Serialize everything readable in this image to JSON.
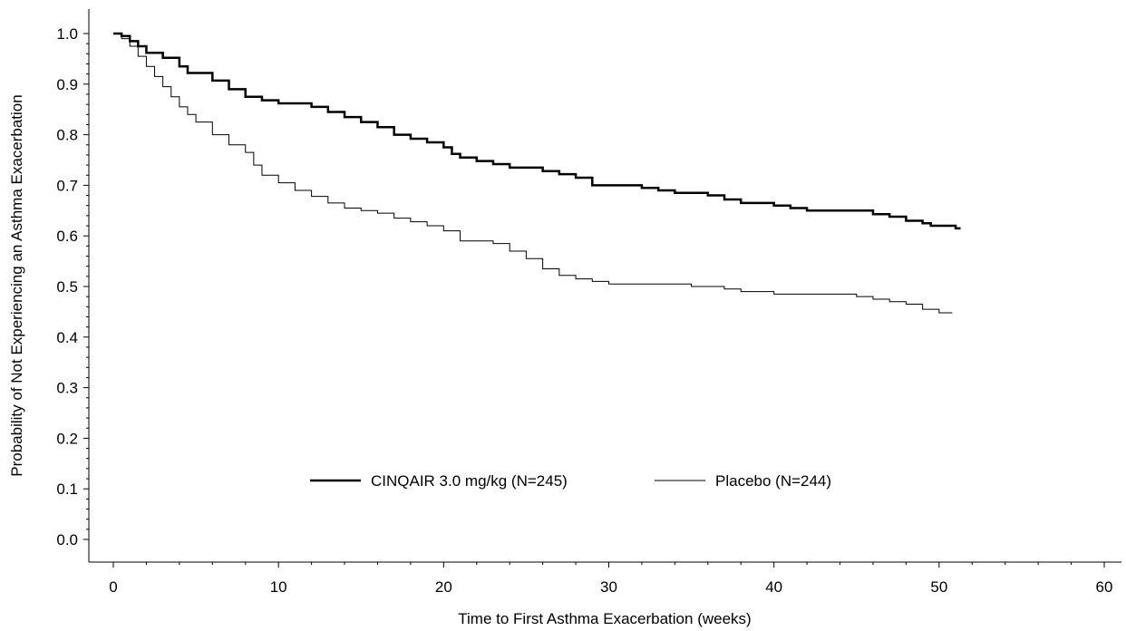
{
  "chart_data": {
    "type": "line",
    "step": true,
    "title": "",
    "xlabel": "Time to First Asthma Exacerbation (weeks)",
    "ylabel": "Probability of Not Experiencing an Asthma Exacerbation",
    "xlim": [
      0,
      60
    ],
    "ylim": [
      0.0,
      1.0
    ],
    "x_ticks": [
      "0",
      "10",
      "20",
      "30",
      "40",
      "50",
      "60"
    ],
    "y_ticks": [
      "0.0",
      "0.1",
      "0.2",
      "0.3",
      "0.4",
      "0.5",
      "0.6",
      "0.7",
      "0.8",
      "0.9",
      "1.0"
    ],
    "grid": false,
    "legend_position": "bottom-center",
    "series": [
      {
        "name": "CINQAIR 3.0 mg/kg (N=245)",
        "style": "thick",
        "color": "#000000",
        "points": [
          [
            0,
            1.0
          ],
          [
            0.5,
            0.995
          ],
          [
            1,
            0.985
          ],
          [
            1.5,
            0.975
          ],
          [
            2,
            0.962
          ],
          [
            3,
            0.952
          ],
          [
            4,
            0.935
          ],
          [
            4.5,
            0.922
          ],
          [
            6,
            0.907
          ],
          [
            7,
            0.89
          ],
          [
            8,
            0.875
          ],
          [
            9,
            0.868
          ],
          [
            10,
            0.862
          ],
          [
            12,
            0.855
          ],
          [
            13,
            0.845
          ],
          [
            14,
            0.835
          ],
          [
            15,
            0.825
          ],
          [
            16,
            0.815
          ],
          [
            17,
            0.8
          ],
          [
            18,
            0.792
          ],
          [
            19,
            0.785
          ],
          [
            20,
            0.775
          ],
          [
            20.5,
            0.762
          ],
          [
            21,
            0.755
          ],
          [
            22,
            0.748
          ],
          [
            23,
            0.742
          ],
          [
            24,
            0.735
          ],
          [
            26,
            0.728
          ],
          [
            27,
            0.722
          ],
          [
            28,
            0.715
          ],
          [
            29,
            0.7
          ],
          [
            32,
            0.695
          ],
          [
            33,
            0.69
          ],
          [
            34,
            0.685
          ],
          [
            36,
            0.68
          ],
          [
            37,
            0.672
          ],
          [
            38,
            0.665
          ],
          [
            40,
            0.66
          ],
          [
            41,
            0.655
          ],
          [
            42,
            0.65
          ],
          [
            46,
            0.643
          ],
          [
            47,
            0.638
          ],
          [
            48,
            0.63
          ],
          [
            49,
            0.625
          ],
          [
            49.5,
            0.62
          ],
          [
            51,
            0.615
          ],
          [
            51.3,
            0.615
          ]
        ]
      },
      {
        "name": "Placebo (N=244)",
        "style": "thin",
        "color": "#000000",
        "points": [
          [
            0,
            1.0
          ],
          [
            0.5,
            0.99
          ],
          [
            1,
            0.975
          ],
          [
            1.5,
            0.955
          ],
          [
            2,
            0.935
          ],
          [
            2.5,
            0.915
          ],
          [
            3,
            0.895
          ],
          [
            3.5,
            0.875
          ],
          [
            4,
            0.855
          ],
          [
            4.5,
            0.84
          ],
          [
            5,
            0.825
          ],
          [
            6,
            0.8
          ],
          [
            7,
            0.78
          ],
          [
            8,
            0.765
          ],
          [
            8.5,
            0.74
          ],
          [
            9,
            0.72
          ],
          [
            10,
            0.705
          ],
          [
            11,
            0.69
          ],
          [
            12,
            0.678
          ],
          [
            13,
            0.665
          ],
          [
            14,
            0.655
          ],
          [
            15,
            0.65
          ],
          [
            16,
            0.645
          ],
          [
            17,
            0.635
          ],
          [
            18,
            0.628
          ],
          [
            19,
            0.62
          ],
          [
            20,
            0.61
          ],
          [
            21,
            0.59
          ],
          [
            23,
            0.585
          ],
          [
            24,
            0.57
          ],
          [
            25,
            0.555
          ],
          [
            26,
            0.535
          ],
          [
            27,
            0.522
          ],
          [
            28,
            0.515
          ],
          [
            29,
            0.51
          ],
          [
            30,
            0.505
          ],
          [
            35,
            0.5
          ],
          [
            37,
            0.495
          ],
          [
            38,
            0.49
          ],
          [
            40,
            0.485
          ],
          [
            45,
            0.48
          ],
          [
            46,
            0.475
          ],
          [
            47,
            0.47
          ],
          [
            48,
            0.465
          ],
          [
            49,
            0.455
          ],
          [
            50,
            0.448
          ],
          [
            50.8,
            0.448
          ]
        ]
      }
    ]
  },
  "legend": {
    "items": [
      {
        "label": "CINQAIR 3.0 mg/kg (N=245)",
        "style": "thick"
      },
      {
        "label": "Placebo (N=244)",
        "style": "thin"
      }
    ]
  }
}
